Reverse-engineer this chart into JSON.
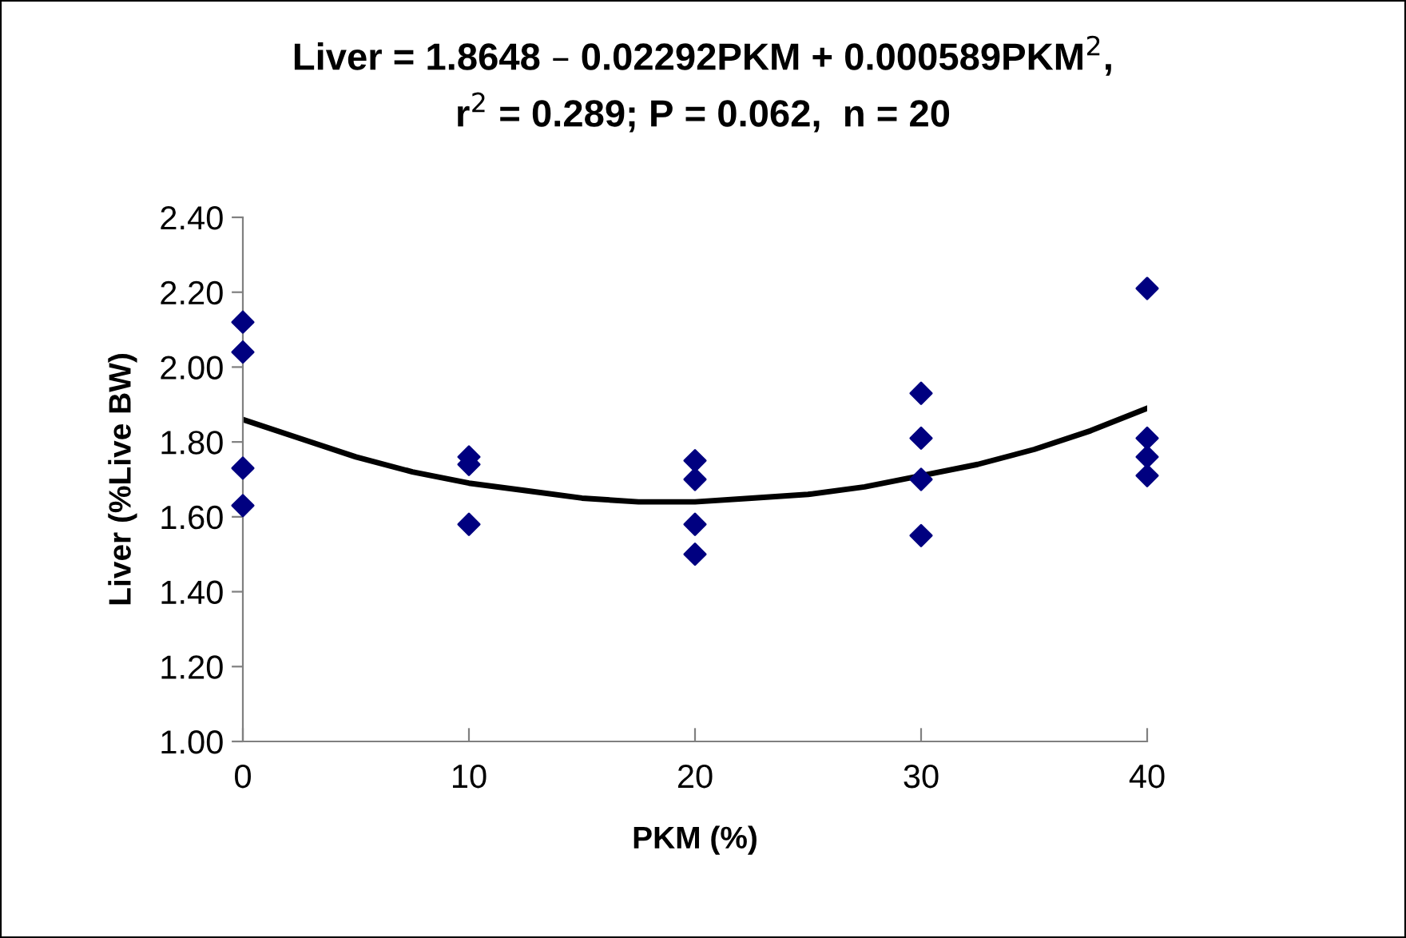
{
  "chart_data": {
    "type": "scatter",
    "title": "Liver = 1.8648 – 0.02292PKM + 0.000589PKM$^{2}$,\nr$^{2}$ = 0.289; P = 0.062,  n = 20",
    "xlabel": "PKM (%)",
    "ylabel": "Liver (%Live BW)",
    "xlim": [
      0,
      40
    ],
    "xticks": [
      0,
      10,
      20,
      30,
      40
    ],
    "ylim": [
      1.0,
      2.4
    ],
    "yticks": [
      {
        "value": 1.0,
        "label": "1.00"
      },
      {
        "value": 1.2,
        "label": "1.20"
      },
      {
        "value": 1.4,
        "label": "1.40"
      },
      {
        "value": 1.6,
        "label": "1.60"
      },
      {
        "value": 1.8,
        "label": "1.80"
      },
      {
        "value": 2.0,
        "label": "2.00"
      },
      {
        "value": 2.2,
        "label": "2.20"
      },
      {
        "value": 2.4,
        "label": "2.40"
      }
    ],
    "grid": false,
    "legend": false,
    "series": [
      {
        "marker": "diamond",
        "color": "#000080",
        "x": [
          0,
          0,
          0,
          0,
          10,
          10,
          10,
          20,
          20,
          20,
          20,
          30,
          30,
          30,
          30,
          40,
          40,
          40,
          40
        ],
        "values": [
          2.12,
          2.04,
          1.73,
          1.63,
          1.76,
          1.74,
          1.58,
          1.75,
          1.7,
          1.58,
          1.5,
          1.93,
          1.81,
          1.7,
          1.55,
          2.21,
          1.81,
          1.76,
          1.71
        ]
      },
      {
        "type": "line",
        "marker": "none",
        "line_style": "solid",
        "color": "#000000",
        "x": [
          0,
          2.5,
          5,
          7.5,
          10,
          12.5,
          15,
          17.5,
          20,
          22.5,
          25,
          27.5,
          30,
          32.5,
          35,
          37.5,
          40
        ],
        "values": [
          1.86,
          1.81,
          1.76,
          1.72,
          1.69,
          1.67,
          1.65,
          1.64,
          1.64,
          1.65,
          1.66,
          1.68,
          1.71,
          1.74,
          1.78,
          1.83,
          1.89
        ]
      }
    ]
  }
}
